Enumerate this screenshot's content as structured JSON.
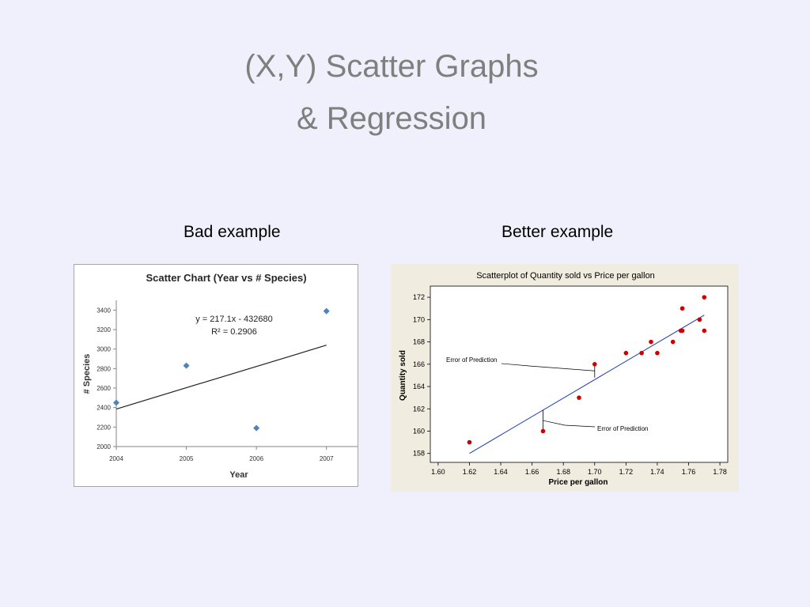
{
  "slide": {
    "title_line1": "(X,Y) Scatter Graphs",
    "title_line2": "& Regression",
    "caption_left": "Bad example",
    "caption_right": "Better example"
  },
  "chart_data": [
    {
      "type": "scatter",
      "title": "Scatter Chart (Year vs # Species)",
      "xlabel": "Year",
      "ylabel": "# Species",
      "x_ticks": [
        "2004",
        "2005",
        "2006",
        "2007"
      ],
      "y_ticks": [
        "2000",
        "2200",
        "2400",
        "2600",
        "2800",
        "3000",
        "3200",
        "3400"
      ],
      "xlim": [
        2004,
        2007.5
      ],
      "ylim": [
        2000,
        3500
      ],
      "grid": false,
      "marker_color": "#4f81bd",
      "points": [
        {
          "x": 2004,
          "y": 2450
        },
        {
          "x": 2005,
          "y": 2830
        },
        {
          "x": 2006,
          "y": 2190
        },
        {
          "x": 2007,
          "y": 3390
        }
      ],
      "trendline": {
        "x": [
          2004,
          2007
        ],
        "y": [
          2385,
          3040
        ]
      },
      "equation": "y = 217.1x - 432680",
      "r_squared": "R² = 0.2906"
    },
    {
      "type": "scatter",
      "title": "Scatterplot of Quantity sold vs Price per gallon",
      "xlabel": "Price per gallon",
      "ylabel": "Quantity sold",
      "x_ticks": [
        "1.60",
        "1.62",
        "1.64",
        "1.66",
        "1.68",
        "1.70",
        "1.72",
        "1.74",
        "1.76",
        "1.78"
      ],
      "y_ticks": [
        "158",
        "160",
        "162",
        "164",
        "166",
        "168",
        "170",
        "172"
      ],
      "xlim": [
        1.595,
        1.785
      ],
      "ylim": [
        157.2,
        173
      ],
      "grid": false,
      "marker_color": "#cc0000",
      "line_color": "#1f3fb4",
      "points": [
        {
          "x": 1.62,
          "y": 159
        },
        {
          "x": 1.667,
          "y": 160
        },
        {
          "x": 1.69,
          "y": 163
        },
        {
          "x": 1.7,
          "y": 166
        },
        {
          "x": 1.72,
          "y": 167
        },
        {
          "x": 1.73,
          "y": 167
        },
        {
          "x": 1.736,
          "y": 168
        },
        {
          "x": 1.74,
          "y": 167
        },
        {
          "x": 1.75,
          "y": 168
        },
        {
          "x": 1.755,
          "y": 169
        },
        {
          "x": 1.756,
          "y": 169
        },
        {
          "x": 1.756,
          "y": 171
        },
        {
          "x": 1.767,
          "y": 170
        },
        {
          "x": 1.77,
          "y": 172
        },
        {
          "x": 1.77,
          "y": 169
        }
      ],
      "trendline": {
        "x": [
          1.62,
          1.77
        ],
        "y": [
          158.0,
          170.4
        ]
      },
      "annotations": [
        {
          "text": "Error of Prediction",
          "point_x": 1.7,
          "point_y_from": 166,
          "point_y_to": 164.8
        },
        {
          "text": "Error of Prediction",
          "point_x": 1.667,
          "point_y_from": 160,
          "point_y_to": 161.9
        }
      ]
    }
  ]
}
